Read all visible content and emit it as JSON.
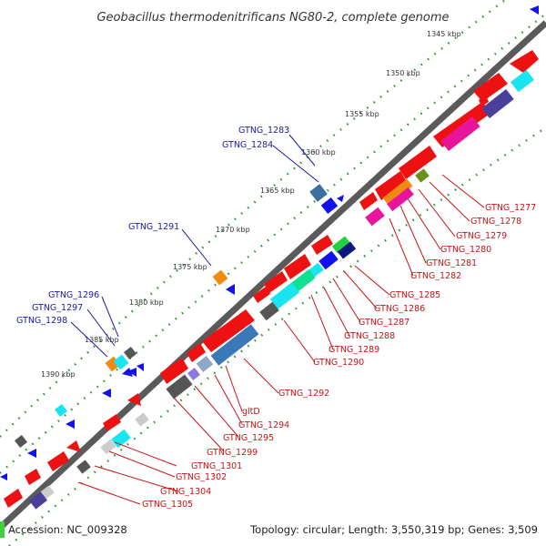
{
  "title": "Geobacillus thermodenitrificans NG80-2, complete genome",
  "ticks": [
    "1345 kbp",
    "1350 kbp",
    "1355 kbp",
    "1360 kbp",
    "1365 kbp",
    "1370 kbp",
    "1375 kbp",
    "1380 kbp",
    "1385 kbp",
    "1390 kbp"
  ],
  "labels_blue": [
    "GTNG_1283",
    "GTNG_1284",
    "GTNG_1291",
    "GTNG_1296",
    "GTNG_1297",
    "GTNG_1298"
  ],
  "labels_red": [
    "GTNG_1277",
    "GTNG_1278",
    "GTNG_1279",
    "GTNG_1280",
    "GTNG_1281",
    "GTNG_1282",
    "GTNG_1285",
    "GTNG_1286",
    "GTNG_1287",
    "GTNG_1288",
    "GTNG_1289",
    "GTNG_1290",
    "GTNG_1292",
    "gltD",
    "GTNG_1294",
    "GTNG_1295",
    "GTNG_1299",
    "GTNG_1301",
    "GTNG_1302",
    "GTNG_1304",
    "GTNG_1305"
  ],
  "footer": {
    "accession": "Accession: NC_009328",
    "summary": "Topology: circular; Length: 3,550,319 bp; Genes: 3,509"
  },
  "colors": {
    "forward_cds": "#ee1111",
    "reverse_cds": "#1111ee",
    "backbone": "#8a8a8a",
    "tick_dots": "#2a8f2a"
  }
}
